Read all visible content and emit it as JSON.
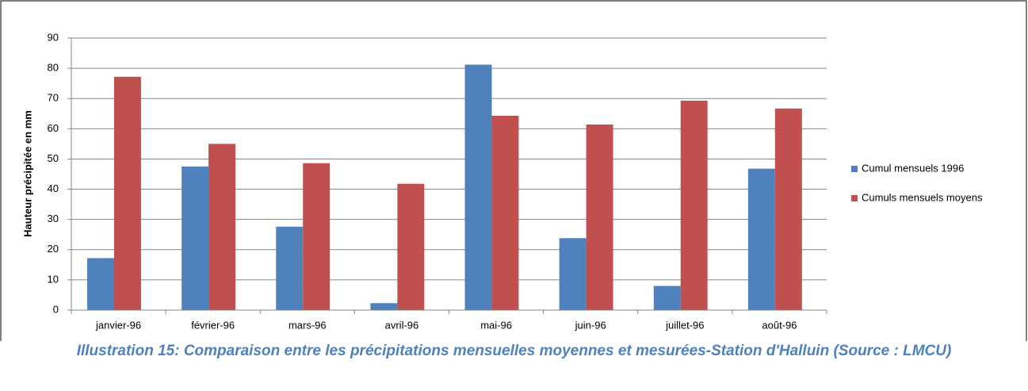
{
  "chart_data": {
    "type": "bar",
    "categories": [
      "janvier-96",
      "février-96",
      "mars-96",
      "avril-96",
      "mai-96",
      "juin-96",
      "juillet-96",
      "août-96"
    ],
    "series": [
      {
        "name": "Cumul mensuels 1996",
        "color": "#4f81bd",
        "values": [
          17.2,
          47.5,
          27.6,
          2.3,
          81.2,
          23.8,
          8.0,
          46.8
        ]
      },
      {
        "name": "Cumuls mensuels moyens",
        "color": "#c0504d",
        "values": [
          77.2,
          55.0,
          48.6,
          41.8,
          64.3,
          61.4,
          69.3,
          66.7
        ]
      }
    ],
    "ylabel": "Hauteur précipitée en mm",
    "ylim": [
      0,
      90
    ],
    "yticks": [
      0,
      10,
      20,
      30,
      40,
      50,
      60,
      70,
      80,
      90
    ],
    "grid": true,
    "legend": "right",
    "caption": "Illustration 15: Comparaison entre les précipitations mensuelles moyennes et mesurées-Station d'Halluin (Source : LMCU)"
  }
}
